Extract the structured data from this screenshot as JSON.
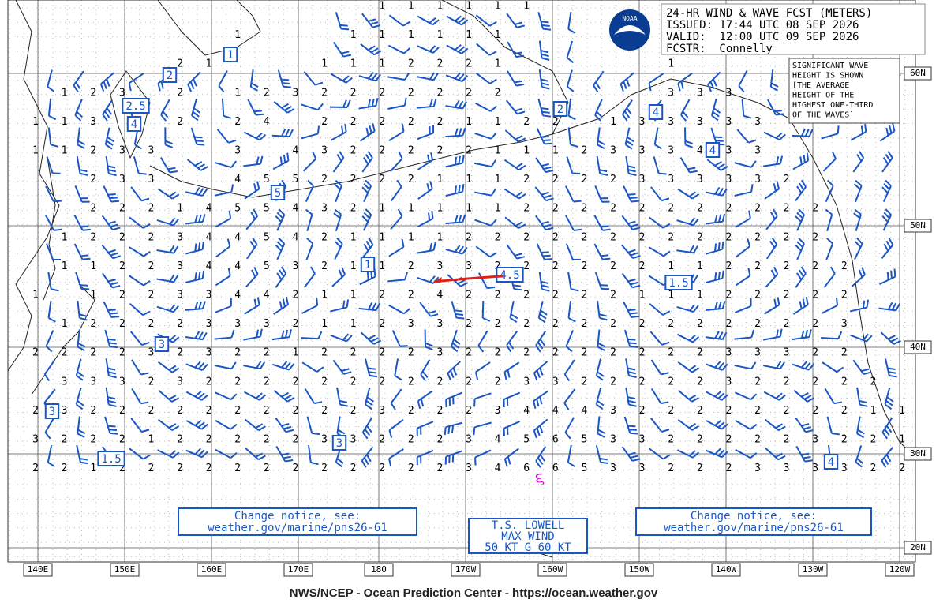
{
  "header": {
    "lines": [
      "24-HR WIND & WAVE FCST (METERS)",
      "ISSUED: 17:44 UTC 08 SEP 2026",
      "VALID:  12:00 UTC 09 SEP 2026",
      "FCSTR:  Connelly"
    ],
    "logo": "NOAA"
  },
  "note": [
    "SIGNIFICANT WAVE",
    "HEIGHT IS SHOWN",
    "[THE AVERAGE",
    "HEIGHT OF THE",
    "HIGHEST ONE-THIRD",
    "OF THE WAVES]"
  ],
  "change_notices": [
    [
      "Change notice, see:",
      "weather.gov/marine/pns26-61"
    ],
    [
      "Change notice, see:",
      "weather.gov/marine/pns26-61"
    ]
  ],
  "storm": [
    "T.S. LOWELL",
    "MAX WIND",
    "50 KT G 60 KT"
  ],
  "longitudes": [
    "140E",
    "150E",
    "160E",
    "170E",
    "180",
    "170W",
    "160W",
    "150W",
    "140W",
    "130W",
    "120W"
  ],
  "latitudes": [
    "60N",
    "50N",
    "40N",
    "30N",
    "20N"
  ],
  "boxed_heights": [
    1,
    2,
    2.5,
    4,
    5,
    1,
    4.5,
    1.5,
    3,
    3,
    3,
    1.5,
    2,
    4,
    4,
    4
  ],
  "wave_heights": [
    [
      null,
      null,
      null,
      null,
      null,
      null,
      null,
      null,
      null,
      null,
      null,
      null,
      1,
      1,
      1,
      1,
      1,
      1,
      null,
      null,
      null,
      null,
      null,
      null,
      null,
      null,
      null,
      null,
      null,
      null,
      null
    ],
    [
      null,
      null,
      null,
      null,
      null,
      null,
      null,
      1,
      null,
      null,
      null,
      1,
      1,
      1,
      1,
      1,
      1,
      null,
      null,
      null,
      null,
      null,
      null,
      null,
      null,
      null,
      null,
      null,
      null,
      null,
      null
    ],
    [
      null,
      null,
      null,
      null,
      null,
      2,
      1,
      null,
      null,
      null,
      1,
      1,
      1,
      2,
      2,
      2,
      1,
      null,
      null,
      null,
      null,
      null,
      1,
      null,
      null,
      null,
      null,
      null,
      null,
      null,
      null
    ],
    [
      null,
      1,
      2,
      3,
      null,
      2,
      null,
      1,
      2,
      3,
      2,
      2,
      2,
      2,
      2,
      2,
      2,
      null,
      null,
      null,
      null,
      null,
      3,
      3,
      3,
      null,
      null,
      null,
      null,
      null,
      null
    ],
    [
      1,
      1,
      3,
      null,
      null,
      2,
      null,
      2,
      4,
      null,
      2,
      2,
      2,
      2,
      2,
      1,
      1,
      2,
      2,
      null,
      1,
      3,
      3,
      3,
      3,
      3,
      null,
      null,
      null,
      null,
      null
    ],
    [
      1,
      1,
      2,
      3,
      3,
      null,
      null,
      3,
      null,
      4,
      3,
      2,
      2,
      2,
      2,
      2,
      1,
      1,
      1,
      2,
      3,
      3,
      3,
      4,
      3,
      3,
      null,
      null,
      null,
      null,
      null
    ],
    [
      null,
      null,
      2,
      3,
      3,
      null,
      null,
      4,
      5,
      5,
      2,
      2,
      2,
      2,
      1,
      1,
      1,
      2,
      2,
      2,
      2,
      3,
      3,
      3,
      3,
      3,
      2,
      null,
      null,
      null,
      null
    ],
    [
      null,
      null,
      2,
      2,
      2,
      1,
      4,
      5,
      5,
      4,
      3,
      2,
      1,
      1,
      1,
      1,
      1,
      2,
      2,
      2,
      2,
      2,
      2,
      2,
      2,
      2,
      2,
      2,
      null,
      null,
      null
    ],
    [
      null,
      1,
      2,
      2,
      2,
      3,
      4,
      4,
      5,
      4,
      2,
      1,
      1,
      1,
      1,
      2,
      2,
      2,
      2,
      2,
      2,
      2,
      2,
      2,
      2,
      2,
      2,
      2,
      null,
      null,
      null
    ],
    [
      null,
      1,
      1,
      2,
      2,
      3,
      4,
      4,
      5,
      3,
      2,
      1,
      1,
      2,
      3,
      3,
      2,
      2,
      2,
      2,
      2,
      2,
      1,
      1,
      2,
      2,
      2,
      2,
      2,
      null,
      null
    ],
    [
      1,
      null,
      1,
      2,
      2,
      3,
      3,
      4,
      4,
      2,
      1,
      1,
      2,
      2,
      4,
      2,
      2,
      2,
      2,
      2,
      2,
      1,
      1,
      1,
      2,
      2,
      2,
      2,
      2,
      null,
      null
    ],
    [
      null,
      1,
      2,
      2,
      2,
      2,
      3,
      3,
      3,
      2,
      1,
      1,
      2,
      3,
      3,
      2,
      2,
      2,
      2,
      2,
      2,
      2,
      2,
      2,
      2,
      2,
      2,
      2,
      3,
      null,
      null
    ],
    [
      2,
      2,
      2,
      2,
      3,
      2,
      3,
      2,
      2,
      1,
      2,
      2,
      2,
      2,
      3,
      2,
      2,
      2,
      2,
      2,
      2,
      2,
      2,
      2,
      3,
      3,
      3,
      2,
      2,
      null,
      null
    ],
    [
      null,
      3,
      3,
      3,
      2,
      3,
      2,
      2,
      2,
      2,
      2,
      2,
      2,
      2,
      2,
      2,
      2,
      3,
      3,
      2,
      2,
      2,
      2,
      2,
      3,
      2,
      2,
      2,
      2,
      2,
      null
    ],
    [
      2,
      3,
      2,
      2,
      2,
      2,
      2,
      2,
      2,
      2,
      2,
      2,
      3,
      2,
      2,
      2,
      3,
      4,
      4,
      4,
      3,
      2,
      2,
      2,
      2,
      2,
      2,
      2,
      2,
      1,
      1
    ],
    [
      3,
      2,
      2,
      2,
      1,
      2,
      2,
      2,
      2,
      2,
      3,
      3,
      2,
      2,
      2,
      3,
      4,
      5,
      6,
      5,
      3,
      3,
      2,
      2,
      2,
      2,
      2,
      3,
      2,
      2,
      1
    ],
    [
      2,
      2,
      1,
      2,
      2,
      2,
      2,
      2,
      2,
      2,
      2,
      2,
      2,
      2,
      2,
      3,
      4,
      6,
      6,
      5,
      3,
      3,
      2,
      2,
      2,
      3,
      3,
      3,
      3,
      2,
      2
    ]
  ],
  "footer": "NWS/NCEP - Ocean Prediction Center - https://ocean.weather.gov"
}
